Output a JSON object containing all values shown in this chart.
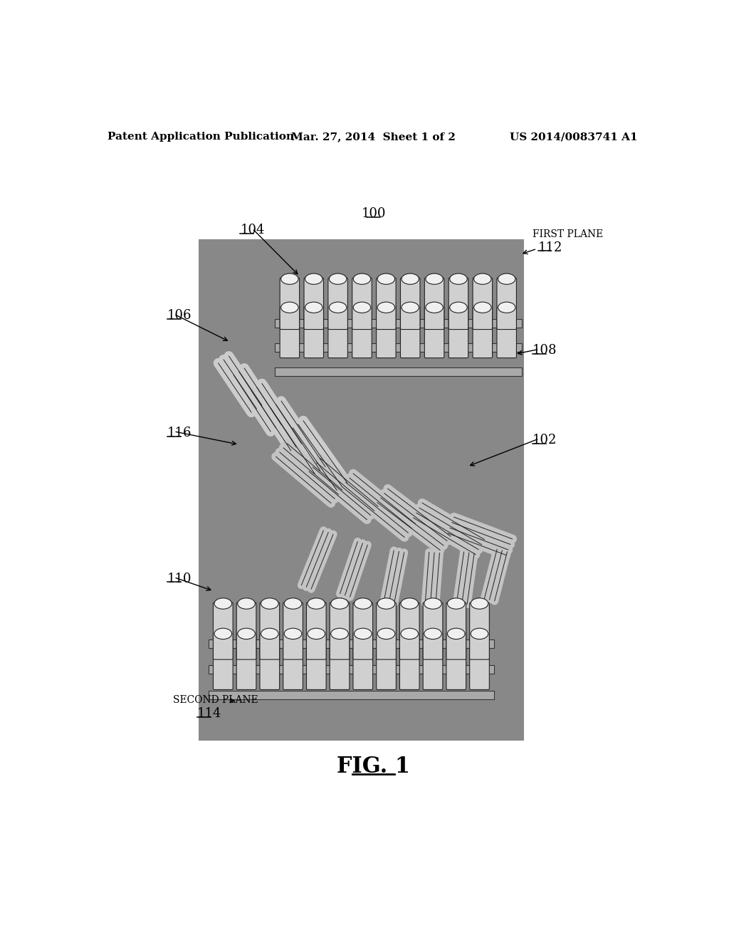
{
  "background_color": "#ffffff",
  "header_left": "Patent Application Publication",
  "header_center": "Mar. 27, 2014  Sheet 1 of 2",
  "header_right": "US 2014/0083741 A1",
  "figure_label": "FIG. 1",
  "ref_100": "100",
  "ref_102": "102",
  "ref_104": "104",
  "ref_106": "106",
  "ref_108": "108",
  "ref_110": "110",
  "ref_112": "112",
  "ref_114": "114",
  "ref_116": "116",
  "label_first_plane": "FIRST PLANE",
  "label_second_plane": "SECOND PLANE",
  "image_gray": "#888888",
  "cylinder_body_color": "#d0d0d0",
  "cylinder_top_color": "#f0f0f0",
  "cylinder_edge_color": "#222222",
  "connector_color": "#c8c8c8",
  "bar_color": "#b0b0b0",
  "header_fontsize": 11,
  "ref_fontsize": 13,
  "fig_label_fontsize": 22,
  "small_label_fontsize": 10
}
